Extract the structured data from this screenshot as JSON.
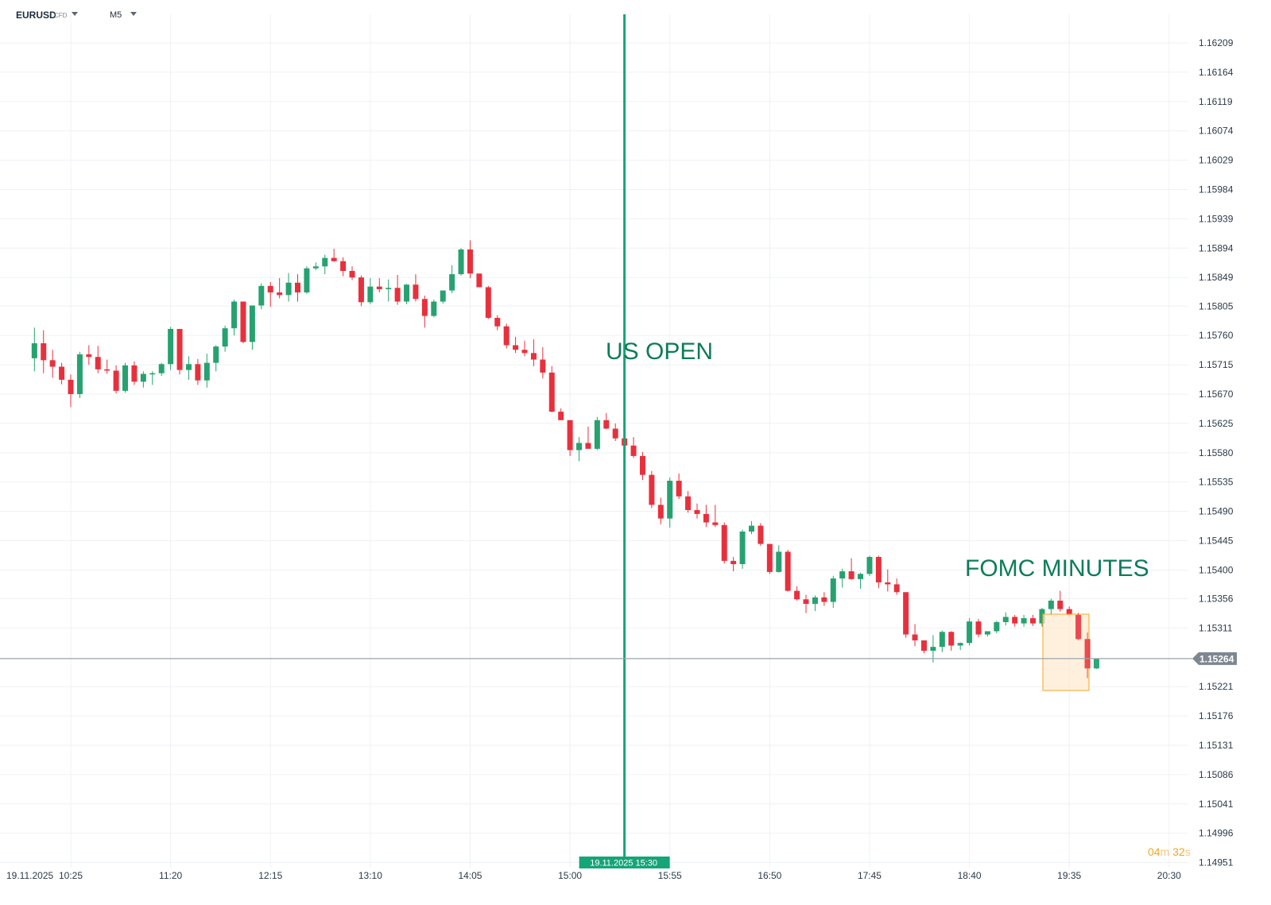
{
  "header": {
    "symbol": "EURUSD",
    "instrument_type": "CFD",
    "timeframe": "M5"
  },
  "colors": {
    "bull": "#26a270",
    "bear": "#e8303d",
    "grid": "#eef1f4",
    "event_line": "#15a577",
    "annotation_text": "#0e7c58",
    "price_line": "#9aa5af",
    "price_badge": "#7d8790",
    "highlight_fill": "#fde9cf",
    "highlight_border": "#f5a623"
  },
  "annotations": [
    {
      "label": "US OPEN",
      "time": "15:30"
    },
    {
      "label": "FOMC MINUTES",
      "time": "20:00"
    }
  ],
  "event_label": "19.11.2025 15:30",
  "current_price": "1.15264",
  "countdown": {
    "minutes": "04",
    "m_unit": "m",
    "seconds": "32",
    "s_unit": "s"
  },
  "chart_data": {
    "type": "candlestick",
    "title": "",
    "xlabel": "",
    "ylabel": "",
    "ylim": [
      1.1493,
      1.1624
    ],
    "y_ticks": [
      "1.16209",
      "1.16164",
      "1.16119",
      "1.16074",
      "1.16029",
      "1.15984",
      "1.15939",
      "1.15894",
      "1.15849",
      "1.15805",
      "1.15760",
      "1.15715",
      "1.15670",
      "1.15625",
      "1.15580",
      "1.15535",
      "1.15490",
      "1.15445",
      "1.15400",
      "1.15356",
      "1.15311",
      "1.15264",
      "1.15221",
      "1.15176",
      "1.15131",
      "1.15086",
      "1.15041",
      "1.14996",
      "1.14951"
    ],
    "x_tick_labels": [
      "19.11.2025",
      "10:25",
      "11:20",
      "12:15",
      "13:10",
      "14:05",
      "15:00",
      "15:55",
      "16:50",
      "17:45",
      "18:40",
      "19:35",
      "20:30"
    ],
    "candles": [
      {
        "t": "10:05",
        "o": 1.15725,
        "h": 1.15772,
        "l": 1.15705,
        "c": 1.15748
      },
      {
        "t": "10:10",
        "o": 1.15748,
        "h": 1.15768,
        "l": 1.15702,
        "c": 1.15722
      },
      {
        "t": "10:15",
        "o": 1.15722,
        "h": 1.15738,
        "l": 1.15695,
        "c": 1.15712
      },
      {
        "t": "10:20",
        "o": 1.15712,
        "h": 1.15718,
        "l": 1.15685,
        "c": 1.15692
      },
      {
        "t": "10:25",
        "o": 1.15692,
        "h": 1.157,
        "l": 1.1565,
        "c": 1.1567
      },
      {
        "t": "10:30",
        "o": 1.1567,
        "h": 1.15735,
        "l": 1.15664,
        "c": 1.15731
      },
      {
        "t": "10:35",
        "o": 1.15731,
        "h": 1.15745,
        "l": 1.15715,
        "c": 1.15727
      },
      {
        "t": "10:40",
        "o": 1.15727,
        "h": 1.15744,
        "l": 1.15702,
        "c": 1.15708
      },
      {
        "t": "10:45",
        "o": 1.15708,
        "h": 1.15723,
        "l": 1.15701,
        "c": 1.15706
      },
      {
        "t": "10:50",
        "o": 1.15706,
        "h": 1.15714,
        "l": 1.15671,
        "c": 1.15675
      },
      {
        "t": "10:55",
        "o": 1.15675,
        "h": 1.15718,
        "l": 1.15672,
        "c": 1.15714
      },
      {
        "t": "11:00",
        "o": 1.15714,
        "h": 1.1572,
        "l": 1.15684,
        "c": 1.15689
      },
      {
        "t": "11:05",
        "o": 1.15689,
        "h": 1.15705,
        "l": 1.1568,
        "c": 1.15701
      },
      {
        "t": "11:10",
        "o": 1.15701,
        "h": 1.15705,
        "l": 1.15684,
        "c": 1.15702
      },
      {
        "t": "11:15",
        "o": 1.15702,
        "h": 1.15718,
        "l": 1.15698,
        "c": 1.15716
      },
      {
        "t": "11:20",
        "o": 1.15716,
        "h": 1.15773,
        "l": 1.15707,
        "c": 1.1577
      },
      {
        "t": "11:25",
        "o": 1.1577,
        "h": 1.1577,
        "l": 1.157,
        "c": 1.15707
      },
      {
        "t": "11:30",
        "o": 1.15707,
        "h": 1.15728,
        "l": 1.15692,
        "c": 1.15716
      },
      {
        "t": "11:35",
        "o": 1.15716,
        "h": 1.15724,
        "l": 1.15684,
        "c": 1.15691
      },
      {
        "t": "11:40",
        "o": 1.15691,
        "h": 1.15732,
        "l": 1.1568,
        "c": 1.15718
      },
      {
        "t": "11:45",
        "o": 1.15718,
        "h": 1.15745,
        "l": 1.15705,
        "c": 1.15743
      },
      {
        "t": "11:50",
        "o": 1.15743,
        "h": 1.15775,
        "l": 1.15735,
        "c": 1.15771
      },
      {
        "t": "11:55",
        "o": 1.15771,
        "h": 1.15815,
        "l": 1.1576,
        "c": 1.15812
      },
      {
        "t": "12:00",
        "o": 1.15812,
        "h": 1.15812,
        "l": 1.15748,
        "c": 1.1575
      },
      {
        "t": "12:05",
        "o": 1.1575,
        "h": 1.15805,
        "l": 1.15738,
        "c": 1.15806
      },
      {
        "t": "12:10",
        "o": 1.15806,
        "h": 1.1584,
        "l": 1.158,
        "c": 1.15836
      },
      {
        "t": "12:15",
        "o": 1.15836,
        "h": 1.15842,
        "l": 1.15804,
        "c": 1.15826
      },
      {
        "t": "12:20",
        "o": 1.15826,
        "h": 1.15848,
        "l": 1.15817,
        "c": 1.15822
      },
      {
        "t": "12:25",
        "o": 1.15822,
        "h": 1.15856,
        "l": 1.15812,
        "c": 1.15841
      },
      {
        "t": "12:30",
        "o": 1.15841,
        "h": 1.15854,
        "l": 1.15812,
        "c": 1.15826
      },
      {
        "t": "12:35",
        "o": 1.15826,
        "h": 1.15866,
        "l": 1.15824,
        "c": 1.15863
      },
      {
        "t": "12:40",
        "o": 1.15863,
        "h": 1.15872,
        "l": 1.1586,
        "c": 1.15866
      },
      {
        "t": "12:45",
        "o": 1.15866,
        "h": 1.15884,
        "l": 1.15854,
        "c": 1.15879
      },
      {
        "t": "12:50",
        "o": 1.15879,
        "h": 1.15893,
        "l": 1.15873,
        "c": 1.15874
      },
      {
        "t": "12:55",
        "o": 1.15874,
        "h": 1.1588,
        "l": 1.15851,
        "c": 1.15859
      },
      {
        "t": "13:00",
        "o": 1.15859,
        "h": 1.15866,
        "l": 1.15845,
        "c": 1.15849
      },
      {
        "t": "13:05",
        "o": 1.15849,
        "h": 1.15852,
        "l": 1.15805,
        "c": 1.15811
      },
      {
        "t": "13:10",
        "o": 1.15811,
        "h": 1.15848,
        "l": 1.15808,
        "c": 1.15835
      },
      {
        "t": "13:15",
        "o": 1.15835,
        "h": 1.15848,
        "l": 1.15826,
        "c": 1.15831
      },
      {
        "t": "13:20",
        "o": 1.15831,
        "h": 1.15846,
        "l": 1.15812,
        "c": 1.15833
      },
      {
        "t": "13:25",
        "o": 1.15833,
        "h": 1.15853,
        "l": 1.15807,
        "c": 1.15812
      },
      {
        "t": "13:30",
        "o": 1.15812,
        "h": 1.15839,
        "l": 1.15808,
        "c": 1.15838
      },
      {
        "t": "13:35",
        "o": 1.15838,
        "h": 1.15854,
        "l": 1.15812,
        "c": 1.15816
      },
      {
        "t": "13:40",
        "o": 1.15816,
        "h": 1.15821,
        "l": 1.15772,
        "c": 1.1579
      },
      {
        "t": "13:45",
        "o": 1.1579,
        "h": 1.15815,
        "l": 1.15788,
        "c": 1.15812
      },
      {
        "t": "13:50",
        "o": 1.15812,
        "h": 1.15829,
        "l": 1.15809,
        "c": 1.15829
      },
      {
        "t": "13:55",
        "o": 1.15829,
        "h": 1.15868,
        "l": 1.15825,
        "c": 1.15854
      },
      {
        "t": "14:00",
        "o": 1.15854,
        "h": 1.15894,
        "l": 1.15852,
        "c": 1.15892
      },
      {
        "t": "14:05",
        "o": 1.15892,
        "h": 1.15906,
        "l": 1.15848,
        "c": 1.15855
      },
      {
        "t": "14:10",
        "o": 1.15855,
        "h": 1.15855,
        "l": 1.15834,
        "c": 1.15834
      },
      {
        "t": "14:15",
        "o": 1.15834,
        "h": 1.15836,
        "l": 1.15785,
        "c": 1.15787
      },
      {
        "t": "14:20",
        "o": 1.15787,
        "h": 1.15791,
        "l": 1.15768,
        "c": 1.15774
      },
      {
        "t": "14:25",
        "o": 1.15774,
        "h": 1.15778,
        "l": 1.1574,
        "c": 1.15745
      },
      {
        "t": "14:30",
        "o": 1.15745,
        "h": 1.15758,
        "l": 1.15733,
        "c": 1.15738
      },
      {
        "t": "14:35",
        "o": 1.15738,
        "h": 1.15752,
        "l": 1.15728,
        "c": 1.15733
      },
      {
        "t": "14:40",
        "o": 1.15733,
        "h": 1.15754,
        "l": 1.15713,
        "c": 1.15723
      },
      {
        "t": "14:45",
        "o": 1.15723,
        "h": 1.15742,
        "l": 1.15694,
        "c": 1.15703
      },
      {
        "t": "14:50",
        "o": 1.15703,
        "h": 1.15713,
        "l": 1.15642,
        "c": 1.15643
      },
      {
        "t": "14:55",
        "o": 1.15643,
        "h": 1.15648,
        "l": 1.1563,
        "c": 1.1563
      },
      {
        "t": "15:00",
        "o": 1.1563,
        "h": 1.1563,
        "l": 1.15575,
        "c": 1.15584
      },
      {
        "t": "15:05",
        "o": 1.15584,
        "h": 1.15604,
        "l": 1.15567,
        "c": 1.15595
      },
      {
        "t": "15:10",
        "o": 1.15595,
        "h": 1.1562,
        "l": 1.1559,
        "c": 1.15586
      },
      {
        "t": "15:15",
        "o": 1.15586,
        "h": 1.15635,
        "l": 1.15584,
        "c": 1.1563
      },
      {
        "t": "15:20",
        "o": 1.1563,
        "h": 1.15641,
        "l": 1.15616,
        "c": 1.15617
      },
      {
        "t": "15:25",
        "o": 1.15617,
        "h": 1.15625,
        "l": 1.15598,
        "c": 1.15602
      },
      {
        "t": "15:30",
        "o": 1.15602,
        "h": 1.15613,
        "l": 1.15588,
        "c": 1.15591
      },
      {
        "t": "15:35",
        "o": 1.15591,
        "h": 1.15604,
        "l": 1.15572,
        "c": 1.15575
      },
      {
        "t": "15:40",
        "o": 1.15575,
        "h": 1.15581,
        "l": 1.15538,
        "c": 1.15546
      },
      {
        "t": "15:45",
        "o": 1.15546,
        "h": 1.15552,
        "l": 1.15495,
        "c": 1.155
      },
      {
        "t": "15:50",
        "o": 1.155,
        "h": 1.15511,
        "l": 1.1547,
        "c": 1.15479
      },
      {
        "t": "15:55",
        "o": 1.15479,
        "h": 1.15542,
        "l": 1.15465,
        "c": 1.15537
      },
      {
        "t": "16:00",
        "o": 1.15537,
        "h": 1.15548,
        "l": 1.15509,
        "c": 1.15513
      },
      {
        "t": "16:05",
        "o": 1.15513,
        "h": 1.15521,
        "l": 1.15488,
        "c": 1.15492
      },
      {
        "t": "16:10",
        "o": 1.15492,
        "h": 1.15502,
        "l": 1.15479,
        "c": 1.15486
      },
      {
        "t": "16:15",
        "o": 1.15486,
        "h": 1.155,
        "l": 1.15466,
        "c": 1.15473
      },
      {
        "t": "16:20",
        "o": 1.15473,
        "h": 1.155,
        "l": 1.15466,
        "c": 1.15469
      },
      {
        "t": "16:25",
        "o": 1.15469,
        "h": 1.15473,
        "l": 1.1541,
        "c": 1.15414
      },
      {
        "t": "16:30",
        "o": 1.15414,
        "h": 1.1542,
        "l": 1.15398,
        "c": 1.15409
      },
      {
        "t": "16:35",
        "o": 1.15409,
        "h": 1.15462,
        "l": 1.15402,
        "c": 1.15459
      },
      {
        "t": "16:40",
        "o": 1.15459,
        "h": 1.15475,
        "l": 1.15455,
        "c": 1.15468
      },
      {
        "t": "16:45",
        "o": 1.15468,
        "h": 1.15472,
        "l": 1.15437,
        "c": 1.1544
      },
      {
        "t": "16:50",
        "o": 1.1544,
        "h": 1.1544,
        "l": 1.15394,
        "c": 1.15397
      },
      {
        "t": "16:55",
        "o": 1.15397,
        "h": 1.15438,
        "l": 1.15396,
        "c": 1.15428
      },
      {
        "t": "17:00",
        "o": 1.15428,
        "h": 1.15431,
        "l": 1.15367,
        "c": 1.15368
      },
      {
        "t": "17:05",
        "o": 1.15368,
        "h": 1.15375,
        "l": 1.15353,
        "c": 1.15355
      },
      {
        "t": "17:10",
        "o": 1.15355,
        "h": 1.15362,
        "l": 1.15334,
        "c": 1.15348
      },
      {
        "t": "17:15",
        "o": 1.15348,
        "h": 1.15361,
        "l": 1.15337,
        "c": 1.15358
      },
      {
        "t": "17:20",
        "o": 1.15358,
        "h": 1.15366,
        "l": 1.15345,
        "c": 1.15351
      },
      {
        "t": "17:25",
        "o": 1.15351,
        "h": 1.15391,
        "l": 1.15342,
        "c": 1.15387
      },
      {
        "t": "17:30",
        "o": 1.15387,
        "h": 1.15402,
        "l": 1.15373,
        "c": 1.15398
      },
      {
        "t": "17:35",
        "o": 1.15398,
        "h": 1.15418,
        "l": 1.15385,
        "c": 1.15386
      },
      {
        "t": "17:40",
        "o": 1.15386,
        "h": 1.15396,
        "l": 1.15371,
        "c": 1.15394
      },
      {
        "t": "17:45",
        "o": 1.15394,
        "h": 1.15422,
        "l": 1.15391,
        "c": 1.1542
      },
      {
        "t": "17:50",
        "o": 1.1542,
        "h": 1.15422,
        "l": 1.15372,
        "c": 1.15381
      },
      {
        "t": "17:55",
        "o": 1.15381,
        "h": 1.15401,
        "l": 1.15367,
        "c": 1.15378
      },
      {
        "t": "18:00",
        "o": 1.15378,
        "h": 1.15387,
        "l": 1.15362,
        "c": 1.15366
      },
      {
        "t": "18:05",
        "o": 1.15366,
        "h": 1.15366,
        "l": 1.15296,
        "c": 1.15301
      },
      {
        "t": "18:10",
        "o": 1.15301,
        "h": 1.15317,
        "l": 1.15283,
        "c": 1.15292
      },
      {
        "t": "18:15",
        "o": 1.15292,
        "h": 1.15292,
        "l": 1.15272,
        "c": 1.15276
      },
      {
        "t": "18:20",
        "o": 1.15276,
        "h": 1.153,
        "l": 1.15258,
        "c": 1.15282
      },
      {
        "t": "18:25",
        "o": 1.15282,
        "h": 1.15307,
        "l": 1.15274,
        "c": 1.15305
      },
      {
        "t": "18:30",
        "o": 1.15305,
        "h": 1.15306,
        "l": 1.15276,
        "c": 1.15284
      },
      {
        "t": "18:35",
        "o": 1.15284,
        "h": 1.15289,
        "l": 1.15277,
        "c": 1.15288
      },
      {
        "t": "18:40",
        "o": 1.15288,
        "h": 1.15326,
        "l": 1.15284,
        "c": 1.15321
      },
      {
        "t": "18:45",
        "o": 1.15321,
        "h": 1.15325,
        "l": 1.15297,
        "c": 1.15301
      },
      {
        "t": "18:50",
        "o": 1.15301,
        "h": 1.15306,
        "l": 1.15298,
        "c": 1.15306
      },
      {
        "t": "18:55",
        "o": 1.15306,
        "h": 1.15322,
        "l": 1.15303,
        "c": 1.1532
      },
      {
        "t": "19:00",
        "o": 1.1532,
        "h": 1.15335,
        "l": 1.15315,
        "c": 1.15328
      },
      {
        "t": "19:05",
        "o": 1.15328,
        "h": 1.15331,
        "l": 1.15313,
        "c": 1.15318
      },
      {
        "t": "19:10",
        "o": 1.15318,
        "h": 1.15331,
        "l": 1.15313,
        "c": 1.15326
      },
      {
        "t": "19:15",
        "o": 1.15326,
        "h": 1.15331,
        "l": 1.15314,
        "c": 1.15318
      },
      {
        "t": "19:20",
        "o": 1.15318,
        "h": 1.15342,
        "l": 1.15313,
        "c": 1.1534
      },
      {
        "t": "19:25",
        "o": 1.1534,
        "h": 1.15356,
        "l": 1.1533,
        "c": 1.15353
      },
      {
        "t": "19:30",
        "o": 1.15353,
        "h": 1.15368,
        "l": 1.15336,
        "c": 1.1534
      },
      {
        "t": "19:35",
        "o": 1.1534,
        "h": 1.15344,
        "l": 1.15328,
        "c": 1.15331
      },
      {
        "t": "19:40",
        "o": 1.15331,
        "h": 1.15334,
        "l": 1.15292,
        "c": 1.15294
      },
      {
        "t": "19:45",
        "o": 1.15294,
        "h": 1.15304,
        "l": 1.15234,
        "c": 1.15249
      },
      {
        "t": "19:50",
        "o": 1.15249,
        "h": 1.15264,
        "l": 1.15248,
        "c": 1.15264
      }
    ]
  }
}
